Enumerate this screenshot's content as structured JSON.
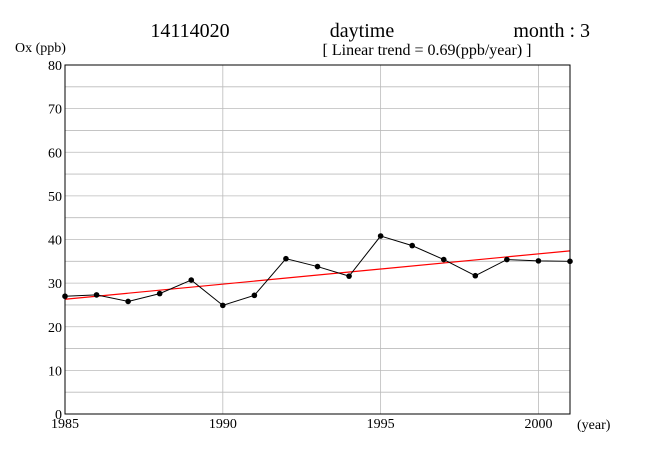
{
  "header": {
    "station_id": "14114020",
    "period": "daytime",
    "month": "month : 3",
    "trend": "[ Linear trend = 0.69(ppb/year) ]"
  },
  "chart_data": {
    "type": "line",
    "ylabel": "Ox (ppb)",
    "xlabel": "(year)",
    "xlim": [
      1985,
      2001
    ],
    "ylim": [
      0,
      80
    ],
    "x_ticks": [
      1985,
      1990,
      1995,
      2000
    ],
    "y_ticks": [
      0,
      10,
      20,
      30,
      40,
      50,
      60,
      70,
      80
    ],
    "grid": true,
    "series": [
      {
        "color": "#000000",
        "marker": "circle",
        "x": [
          1985,
          1986,
          1987,
          1988,
          1989,
          1990,
          1991,
          1992,
          1993,
          1994,
          1995,
          1996,
          1997,
          1998,
          1999,
          2000,
          2001
        ],
        "y": [
          27.0,
          27.3,
          25.8,
          27.6,
          30.7,
          24.9,
          27.2,
          35.6,
          33.8,
          31.6,
          40.8,
          38.6,
          35.4,
          31.7,
          35.4,
          35.1,
          35.0
        ]
      }
    ],
    "trend_line": {
      "color": "#ff0000",
      "slope": 0.69,
      "x": [
        1985,
        2001
      ],
      "y": [
        26.3,
        37.4
      ]
    }
  }
}
